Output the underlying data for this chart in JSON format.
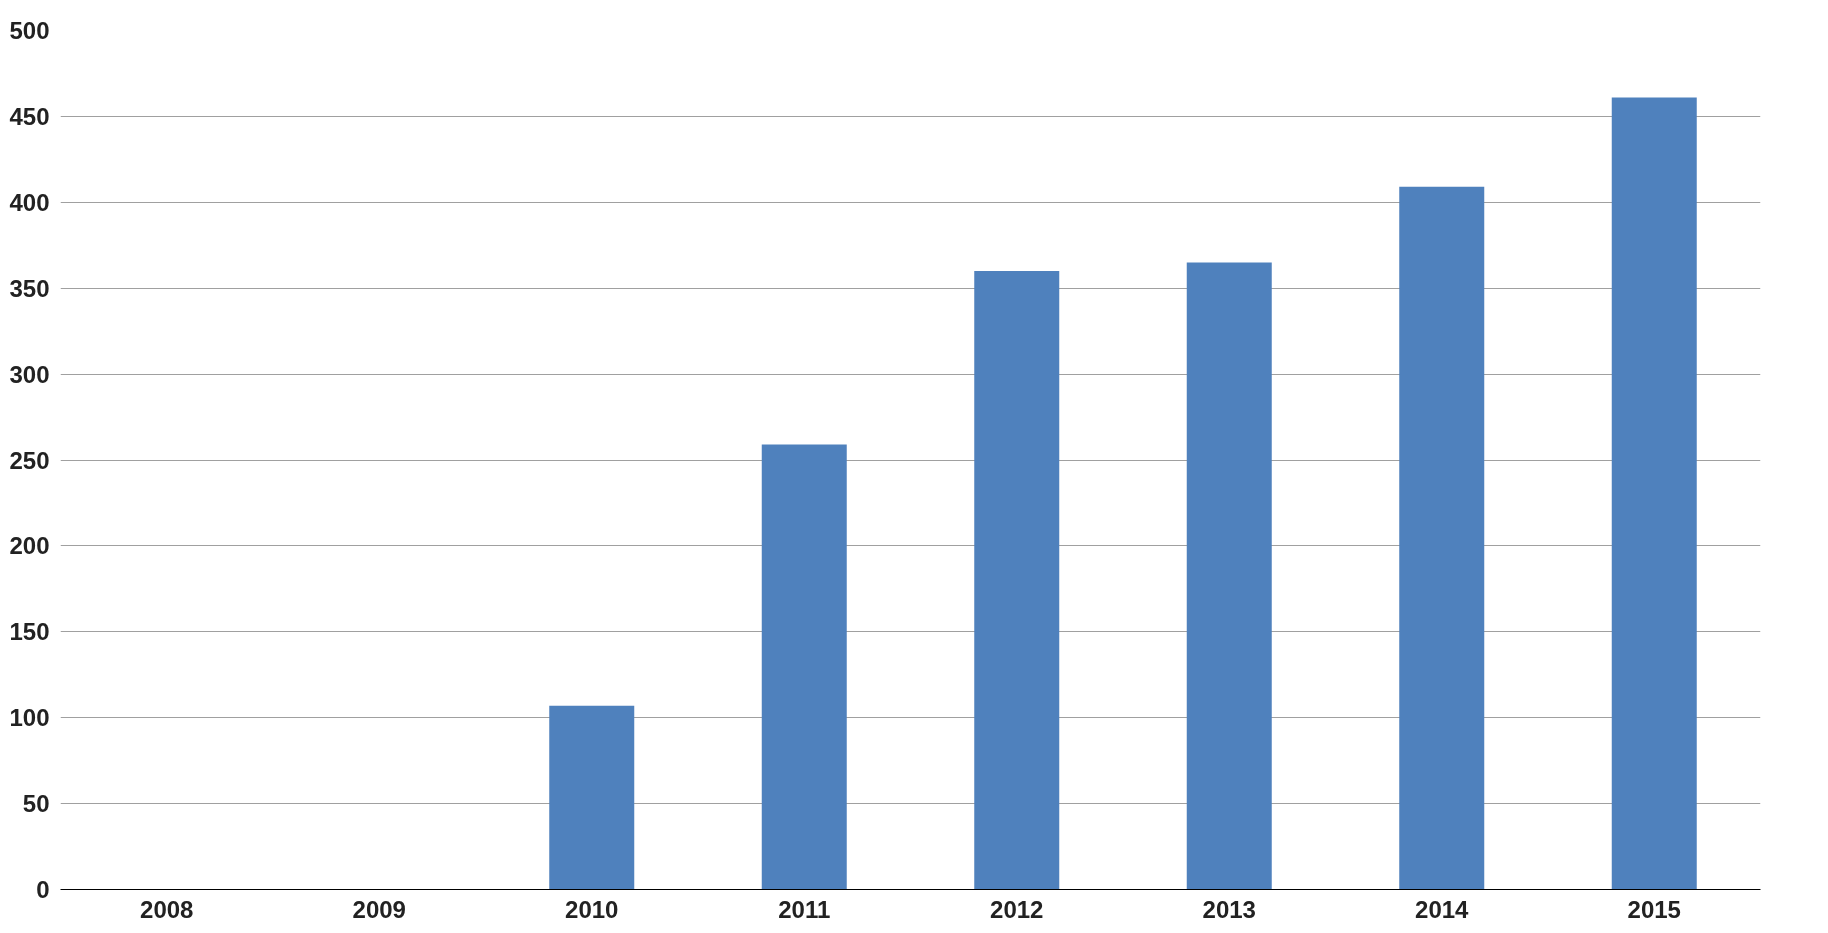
{
  "chart_data": {
    "type": "bar",
    "categories": [
      "2008",
      "2009",
      "2010",
      "2011",
      "2012",
      "2013",
      "2014",
      "2015"
    ],
    "values": [
      null,
      null,
      107,
      259,
      360,
      365,
      409,
      461
    ],
    "color": "#4f81bd",
    "ylim": [
      0,
      500
    ],
    "yticks": [
      0,
      50,
      100,
      150,
      200,
      250,
      300,
      350,
      400,
      450,
      500
    ],
    "grid": "y"
  }
}
